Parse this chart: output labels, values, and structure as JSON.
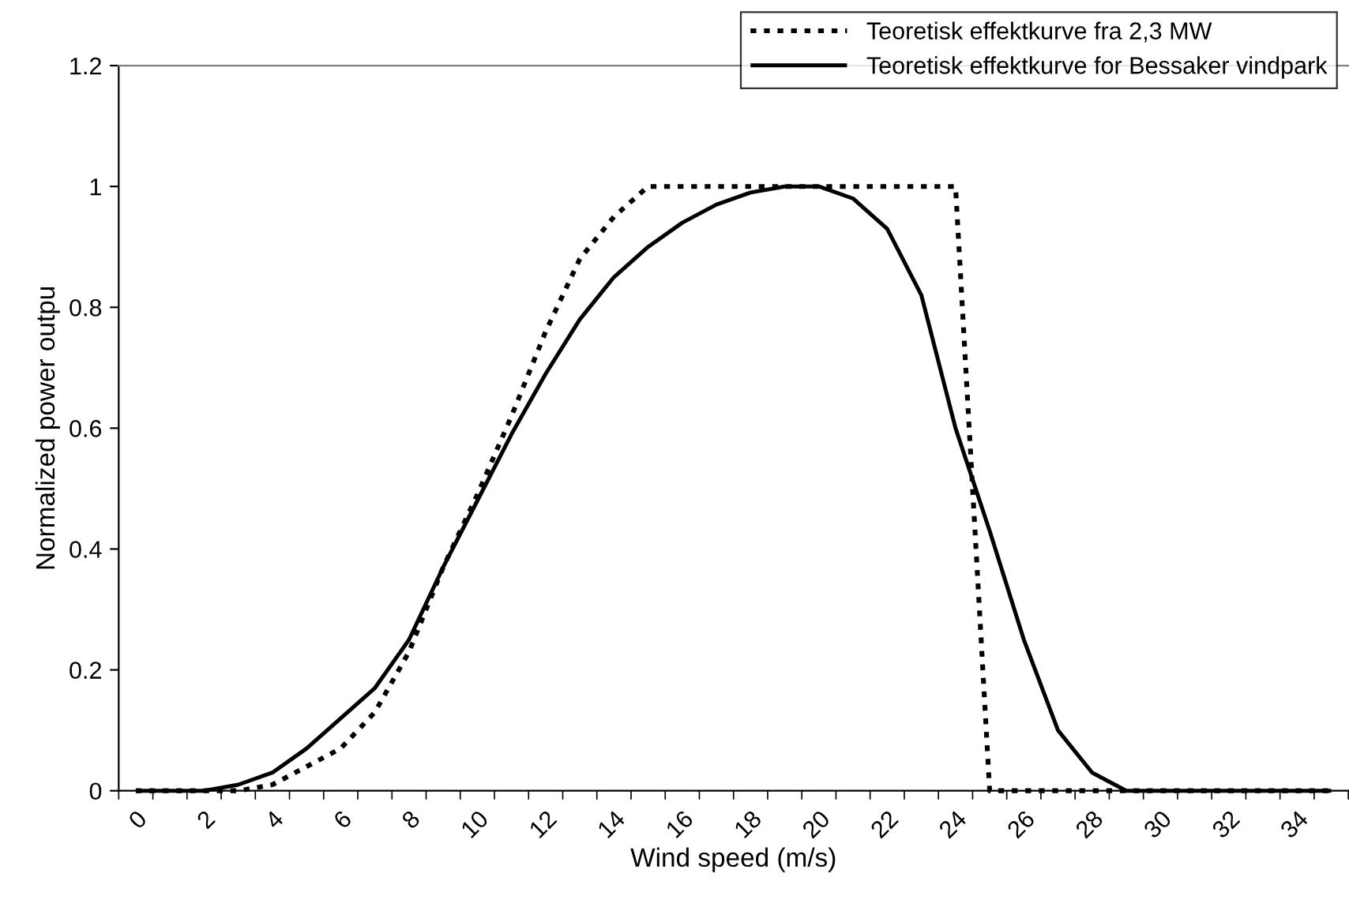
{
  "chart_data": {
    "type": "line",
    "xlabel": "Wind speed (m/s)",
    "ylabel": "Normalized power outpu",
    "categories": [
      "0",
      null,
      "2",
      null,
      "4",
      null,
      "6",
      null,
      "8",
      null,
      "10",
      null,
      "12",
      null,
      "14",
      null,
      "16",
      null,
      "18",
      null,
      "20",
      null,
      "22",
      null,
      "24",
      null,
      "26",
      null,
      "28",
      null,
      "30",
      null,
      "32",
      null,
      "34",
      null
    ],
    "series": [
      {
        "name": "Teoretisk effektkurve fra 2,3 MW",
        "color": "#000000",
        "line_style": "dotted",
        "values": [
          0,
          0,
          0,
          0,
          0.01,
          0.04,
          0.07,
          0.13,
          0.23,
          0.37,
          0.49,
          0.62,
          0.76,
          0.88,
          0.95,
          1.0,
          1.0,
          1.0,
          1.0,
          1.0,
          1.0,
          1.0,
          1.0,
          1.0,
          1.0,
          0,
          0,
          0,
          0,
          0,
          0,
          0,
          0,
          0,
          0,
          0
        ]
      },
      {
        "name": "Teoretisk effektkurve for Bessaker vindpark",
        "color": "#000000",
        "line_style": "solid",
        "values": [
          0,
          0,
          0,
          0.01,
          0.03,
          0.07,
          0.12,
          0.17,
          0.25,
          0.37,
          0.48,
          0.59,
          0.69,
          0.78,
          0.85,
          0.9,
          0.94,
          0.97,
          0.99,
          1.0,
          1.0,
          0.98,
          0.93,
          0.82,
          0.6,
          0.43,
          0.25,
          0.1,
          0.03,
          0,
          0,
          0,
          0,
          0,
          0,
          0
        ]
      }
    ],
    "ylim": [
      0,
      1.2
    ],
    "yticks": [
      0,
      0.2,
      0.4,
      0.6,
      0.8,
      1,
      1.2
    ],
    "grid": false,
    "legend": "top right",
    "marker": "none"
  }
}
